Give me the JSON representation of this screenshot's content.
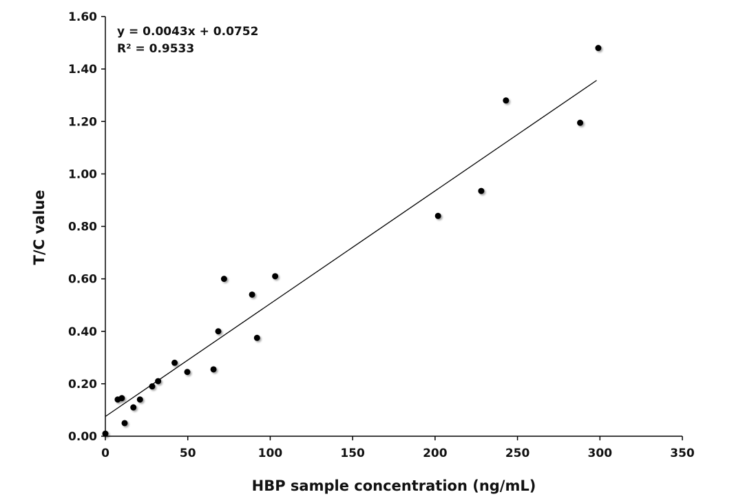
{
  "chart_data": {
    "type": "scatter",
    "xlabel": "HBP sample concentration (ng/mL)",
    "ylabel": "T/C value",
    "xlim": [
      0,
      350
    ],
    "ylim": [
      0,
      1.6
    ],
    "xticks": [
      "0",
      "50",
      "100",
      "150",
      "200",
      "250",
      "300",
      "350"
    ],
    "yticks": [
      "0.00",
      "0.20",
      "0.40",
      "0.60",
      "0.80",
      "1.00",
      "1.20",
      "1.40",
      "1.60"
    ],
    "grid": false,
    "points": [
      {
        "x": 0,
        "y": 0.01
      },
      {
        "x": 7.5,
        "y": 0.14
      },
      {
        "x": 10,
        "y": 0.145
      },
      {
        "x": 11.7,
        "y": 0.05
      },
      {
        "x": 17,
        "y": 0.11
      },
      {
        "x": 21,
        "y": 0.14
      },
      {
        "x": 28.4,
        "y": 0.19
      },
      {
        "x": 32,
        "y": 0.21
      },
      {
        "x": 42,
        "y": 0.28
      },
      {
        "x": 49.7,
        "y": 0.245
      },
      {
        "x": 65.6,
        "y": 0.255
      },
      {
        "x": 68.5,
        "y": 0.4
      },
      {
        "x": 72,
        "y": 0.6
      },
      {
        "x": 89,
        "y": 0.54
      },
      {
        "x": 92,
        "y": 0.375
      },
      {
        "x": 103,
        "y": 0.61
      },
      {
        "x": 201.8,
        "y": 0.84
      },
      {
        "x": 228,
        "y": 0.935
      },
      {
        "x": 243,
        "y": 1.28
      },
      {
        "x": 288,
        "y": 1.195
      },
      {
        "x": 299,
        "y": 1.48
      }
    ],
    "trendline": {
      "slope": 0.0043,
      "intercept": 0.0752,
      "x_range": [
        0,
        298
      ]
    },
    "annotations": [
      "y = 0.0043x + 0.0752",
      "R² = 0.9533"
    ],
    "colors": {
      "points": "#000000",
      "line": "#000000"
    }
  }
}
